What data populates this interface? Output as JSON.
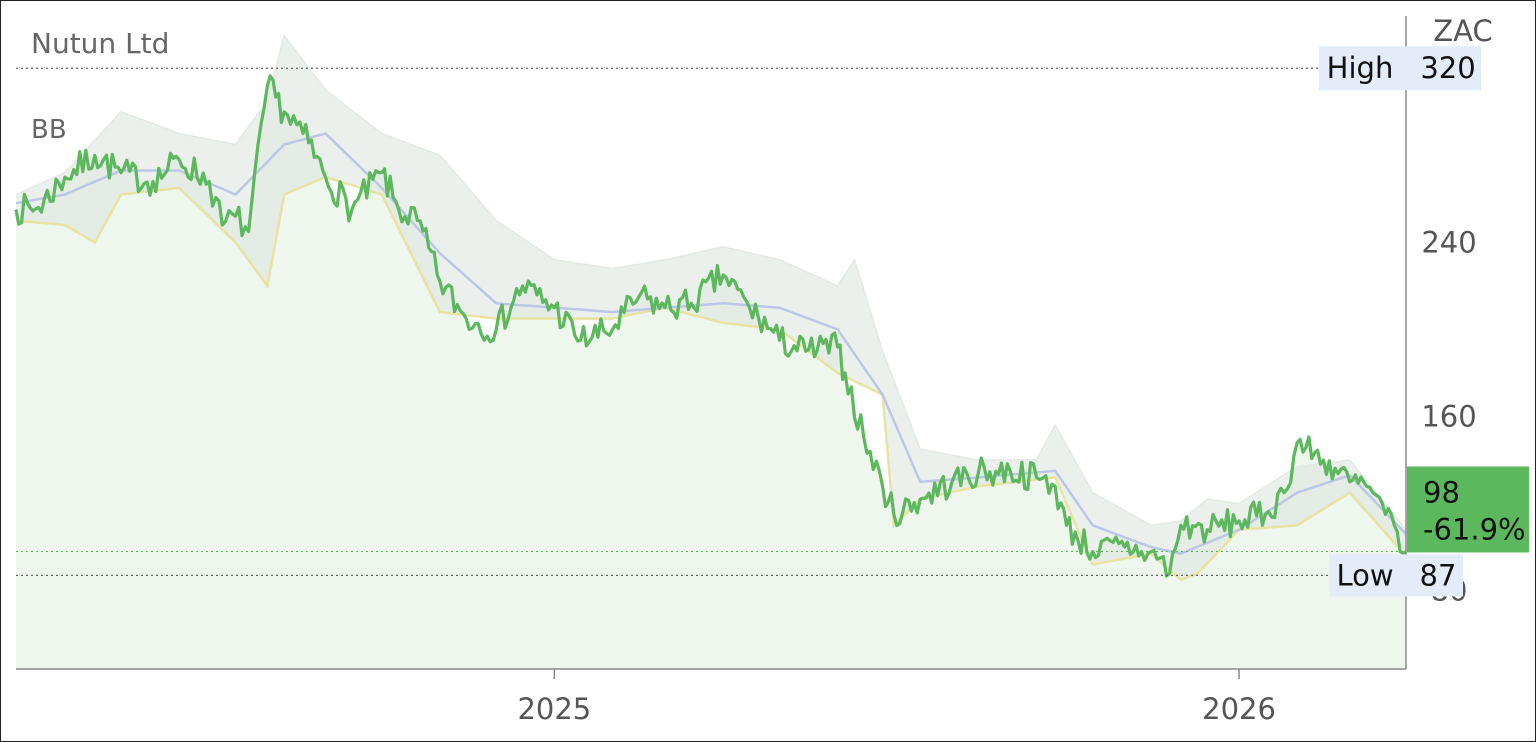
{
  "chart_data": {
    "type": "line",
    "title": "Nutun Ltd",
    "indicator_label": "BB",
    "currency": "ZAC",
    "x_ticks": [
      {
        "label": "2025",
        "date": "2025-01-01"
      },
      {
        "label": "2026",
        "date": "2026-01-01"
      }
    ],
    "x_range": [
      "2024-03-20",
      "2026-03-31"
    ],
    "y_ticks": [
      {
        "value": 80,
        "label": "80"
      },
      {
        "value": 160,
        "label": "160"
      },
      {
        "value": 240,
        "label": "240"
      }
    ],
    "ylim": [
      44,
      344
    ],
    "grid": false,
    "high": {
      "label": "High",
      "value": 320,
      "text": "320"
    },
    "low": {
      "label": "Low",
      "value": 87,
      "text": "87"
    },
    "last": {
      "value": 98,
      "text": "98",
      "change_text": "-61.9%"
    },
    "series": [
      {
        "kind": "price",
        "color": "#5cb85c",
        "x": [
          "2024-03-20",
          "2024-04-01",
          "2024-04-15",
          "2024-05-01",
          "2024-05-15",
          "2024-06-01",
          "2024-06-15",
          "2024-07-01",
          "2024-07-08",
          "2024-07-15",
          "2024-07-22",
          "2024-08-01",
          "2024-08-10",
          "2024-08-20",
          "2024-09-01",
          "2024-09-15",
          "2024-10-01",
          "2024-10-10",
          "2024-10-20",
          "2024-11-01",
          "2024-11-15",
          "2024-12-01",
          "2024-12-15",
          "2025-01-01",
          "2025-01-15",
          "2025-02-01",
          "2025-02-15",
          "2025-03-01",
          "2025-03-15",
          "2025-04-01",
          "2025-04-15",
          "2025-05-01",
          "2025-05-15",
          "2025-06-01",
          "2025-06-05",
          "2025-06-15",
          "2025-06-25",
          "2025-07-01",
          "2025-07-15",
          "2025-08-01",
          "2025-08-15",
          "2025-09-01",
          "2025-09-15",
          "2025-09-25",
          "2025-10-01",
          "2025-10-15",
          "2025-11-01",
          "2025-11-10",
          "2025-11-20",
          "2025-11-25",
          "2025-12-01",
          "2025-12-15",
          "2026-01-01",
          "2026-01-15",
          "2026-01-25",
          "2026-02-01",
          "2026-02-15",
          "2026-03-01",
          "2026-03-10",
          "2026-03-20",
          "2026-03-31"
        ],
        "values": [
          255,
          256,
          270,
          280,
          272,
          268,
          278,
          268,
          248,
          252,
          245,
          312,
          300,
          290,
          270,
          255,
          272,
          255,
          250,
          222,
          205,
          200,
          220,
          210,
          195,
          200,
          215,
          210,
          212,
          225,
          210,
          195,
          190,
          192,
          180,
          150,
          128,
          115,
          122,
          130,
          134,
          135,
          132,
          128,
          110,
          98,
          100,
          98,
          95,
          88,
          110,
          108,
          112,
          115,
          125,
          148,
          140,
          130,
          128,
          115,
          98
        ]
      },
      {
        "kind": "bb_middle",
        "color": "#bcc7e6",
        "x": [
          "2024-03-20",
          "2024-04-15",
          "2024-05-15",
          "2024-06-15",
          "2024-07-15",
          "2024-08-10",
          "2024-09-01",
          "2024-10-01",
          "2024-11-01",
          "2024-12-01",
          "2025-01-01",
          "2025-02-01",
          "2025-03-01",
          "2025-04-01",
          "2025-05-01",
          "2025-06-01",
          "2025-06-25",
          "2025-07-15",
          "2025-08-15",
          "2025-09-25",
          "2025-10-15",
          "2025-11-15",
          "2025-12-01",
          "2026-01-01",
          "2026-02-01",
          "2026-03-01",
          "2026-03-31"
        ],
        "values": [
          258,
          262,
          273,
          273,
          262,
          285,
          290,
          265,
          235,
          212,
          210,
          208,
          210,
          212,
          210,
          200,
          170,
          130,
          132,
          135,
          110,
          100,
          97,
          108,
          125,
          133,
          106
        ]
      },
      {
        "kind": "bb_upper",
        "color": "#e4e9e4",
        "x": [
          "2024-03-20",
          "2024-04-15",
          "2024-05-15",
          "2024-06-15",
          "2024-07-15",
          "2024-08-01",
          "2024-08-10",
          "2024-09-01",
          "2024-10-01",
          "2024-11-01",
          "2024-12-01",
          "2025-01-01",
          "2025-02-01",
          "2025-03-01",
          "2025-04-01",
          "2025-05-01",
          "2025-06-01",
          "2025-06-10",
          "2025-06-25",
          "2025-07-15",
          "2025-08-15",
          "2025-09-15",
          "2025-09-25",
          "2025-10-15",
          "2025-11-15",
          "2025-12-01",
          "2025-12-15",
          "2026-01-01",
          "2026-02-01",
          "2026-03-01",
          "2026-03-31"
        ],
        "values": [
          262,
          272,
          300,
          290,
          285,
          305,
          335,
          310,
          290,
          280,
          250,
          232,
          228,
          232,
          238,
          232,
          220,
          232,
          190,
          145,
          140,
          140,
          156,
          125,
          110,
          112,
          122,
          120,
          137,
          140,
          108
        ]
      },
      {
        "kind": "bb_lower",
        "color": "#e8e3a3",
        "x": [
          "2024-03-20",
          "2024-04-15",
          "2024-05-01",
          "2024-05-15",
          "2024-06-15",
          "2024-07-15",
          "2024-08-01",
          "2024-08-10",
          "2024-09-01",
          "2024-10-01",
          "2024-11-01",
          "2024-12-01",
          "2025-01-01",
          "2025-02-01",
          "2025-03-01",
          "2025-04-01",
          "2025-05-01",
          "2025-06-01",
          "2025-06-25",
          "2025-07-01",
          "2025-07-15",
          "2025-08-15",
          "2025-09-25",
          "2025-10-15",
          "2025-11-15",
          "2025-12-01",
          "2025-12-10",
          "2026-01-01",
          "2026-02-01",
          "2026-03-01",
          "2026-03-31"
        ],
        "values": [
          250,
          248,
          240,
          262,
          265,
          240,
          220,
          262,
          270,
          262,
          208,
          205,
          205,
          205,
          210,
          203,
          200,
          180,
          170,
          110,
          122,
          128,
          132,
          92,
          97,
          85,
          88,
          108,
          110,
          125,
          96
        ]
      }
    ]
  }
}
